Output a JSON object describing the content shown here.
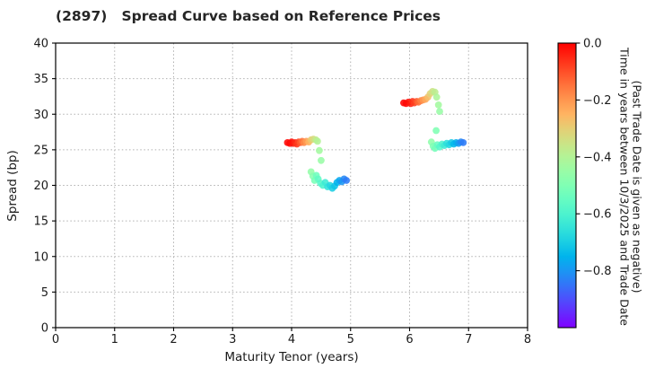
{
  "chart_data": {
    "type": "scatter",
    "title": "(2897)   Spread Curve based on Reference Prices",
    "xlabel": "Maturity Tenor (years)",
    "ylabel": "Spread (bp)",
    "xlim": [
      0,
      8
    ],
    "ylim": [
      0,
      40
    ],
    "x_ticks": [
      0,
      1,
      2,
      3,
      4,
      5,
      6,
      7,
      8
    ],
    "y_ticks": [
      0,
      5,
      10,
      15,
      20,
      25,
      30,
      35,
      40
    ],
    "grid": "dotted",
    "grid_color": "#b1b1b1",
    "text_color": "#1a1a1a",
    "colorbar": {
      "label_line1": "Time in years between 10/3/2025 and Trade Date",
      "label_line2": "(Past Trade Date is given as negative)",
      "ticks": [
        0.0,
        -0.2,
        -0.4,
        -0.6,
        -0.8
      ],
      "range": [
        0,
        -1
      ],
      "colormap": "rainbow"
    },
    "point_meaning": "[maturity_tenor_years, spread_bp, time_years_before_10/3/2025]",
    "series": [
      {
        "name": "cluster-4y-current",
        "points": [
          [
            3.93,
            26.0,
            -0.005
          ],
          [
            3.97,
            25.9,
            -0.01
          ],
          [
            4.0,
            26.1,
            -0.02
          ],
          [
            4.03,
            25.9,
            -0.03
          ],
          [
            4.06,
            26.0,
            -0.05
          ],
          [
            4.09,
            25.8,
            -0.07
          ],
          [
            4.12,
            26.1,
            -0.09
          ],
          [
            4.15,
            26.0,
            -0.12
          ],
          [
            4.18,
            26.2,
            -0.15
          ],
          [
            4.21,
            26.0,
            -0.18
          ],
          [
            4.25,
            26.2,
            -0.21
          ],
          [
            4.29,
            26.1,
            -0.25
          ],
          [
            4.33,
            26.4,
            -0.29
          ],
          [
            4.37,
            26.5,
            -0.33
          ],
          [
            4.41,
            26.4,
            -0.37
          ],
          [
            4.44,
            26.2,
            -0.4
          ],
          [
            4.47,
            24.9,
            -0.43
          ],
          [
            4.5,
            23.5,
            -0.45
          ]
        ]
      },
      {
        "name": "cluster-4y-older-trades",
        "points": [
          [
            4.33,
            21.9,
            -0.46
          ],
          [
            4.36,
            21.3,
            -0.48
          ],
          [
            4.39,
            20.7,
            -0.51
          ],
          [
            4.42,
            21.4,
            -0.53
          ],
          [
            4.45,
            20.9,
            -0.56
          ],
          [
            4.49,
            20.3,
            -0.58
          ],
          [
            4.53,
            20.0,
            -0.6
          ],
          [
            4.57,
            20.4,
            -0.63
          ],
          [
            4.61,
            19.8,
            -0.65
          ],
          [
            4.65,
            20.0,
            -0.68
          ],
          [
            4.69,
            19.6,
            -0.7
          ],
          [
            4.73,
            19.9,
            -0.72
          ],
          [
            4.77,
            20.4,
            -0.75
          ],
          [
            4.81,
            20.7,
            -0.77
          ],
          [
            4.85,
            20.5,
            -0.8
          ],
          [
            4.89,
            20.9,
            -0.82
          ],
          [
            4.93,
            20.7,
            -0.84
          ]
        ]
      },
      {
        "name": "cluster-6y-current",
        "points": [
          [
            5.9,
            31.6,
            -0.005
          ],
          [
            5.94,
            31.5,
            -0.01
          ],
          [
            5.98,
            31.7,
            -0.02
          ],
          [
            6.02,
            31.5,
            -0.04
          ],
          [
            6.05,
            31.8,
            -0.06
          ],
          [
            6.08,
            31.6,
            -0.08
          ],
          [
            6.12,
            31.8,
            -0.11
          ],
          [
            6.15,
            31.7,
            -0.14
          ],
          [
            6.19,
            31.9,
            -0.17
          ],
          [
            6.23,
            32.0,
            -0.2
          ],
          [
            6.27,
            32.1,
            -0.23
          ],
          [
            6.31,
            32.4,
            -0.27
          ],
          [
            6.35,
            32.9,
            -0.31
          ],
          [
            6.39,
            33.2,
            -0.35
          ],
          [
            6.43,
            33.1,
            -0.38
          ],
          [
            6.46,
            32.4,
            -0.41
          ],
          [
            6.49,
            31.3,
            -0.43
          ],
          [
            6.51,
            30.4,
            -0.45
          ]
        ]
      },
      {
        "name": "cluster-6y-older-trades",
        "points": [
          [
            6.45,
            27.7,
            -0.5
          ],
          [
            6.37,
            26.1,
            -0.47
          ],
          [
            6.4,
            25.5,
            -0.5
          ],
          [
            6.43,
            25.2,
            -0.52
          ],
          [
            6.47,
            25.7,
            -0.55
          ],
          [
            6.51,
            25.4,
            -0.58
          ],
          [
            6.55,
            25.8,
            -0.6
          ],
          [
            6.59,
            25.6,
            -0.63
          ],
          [
            6.63,
            25.9,
            -0.66
          ],
          [
            6.67,
            25.7,
            -0.68
          ],
          [
            6.71,
            26.0,
            -0.71
          ],
          [
            6.75,
            25.8,
            -0.74
          ],
          [
            6.79,
            26.0,
            -0.76
          ],
          [
            6.83,
            25.9,
            -0.79
          ],
          [
            6.87,
            26.1,
            -0.82
          ],
          [
            6.91,
            26.0,
            -0.84
          ]
        ]
      }
    ]
  }
}
